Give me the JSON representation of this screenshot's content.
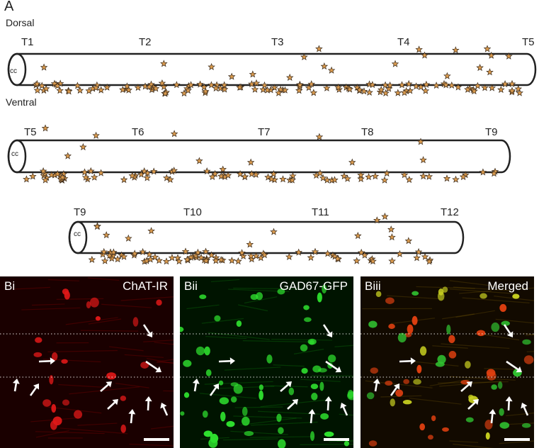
{
  "panel_a": {
    "label": "A",
    "dorsal_label": "Dorsal",
    "ventral_label": "Ventral",
    "rows": [
      {
        "segments": [
          "T1",
          "T2",
          "T3",
          "T4",
          "T5"
        ],
        "cc_label": "cc"
      },
      {
        "segments": [
          "T5",
          "T6",
          "T7",
          "T8",
          "T9"
        ],
        "cc_label": "cc"
      },
      {
        "segments": [
          "T9",
          "T10",
          "T11",
          "T12"
        ],
        "cc_label": "cc"
      }
    ],
    "star_color": "#d99a4e",
    "star_outline": "#3a2a1a"
  },
  "panel_b": [
    {
      "label": "Bi",
      "channel": "ChAT-IR",
      "color": "#e01010"
    },
    {
      "label": "Bii",
      "channel": "GAD67-GFP",
      "color": "#22c022"
    },
    {
      "label": "Biii",
      "channel": "Merged",
      "color": "#d0b020"
    }
  ]
}
